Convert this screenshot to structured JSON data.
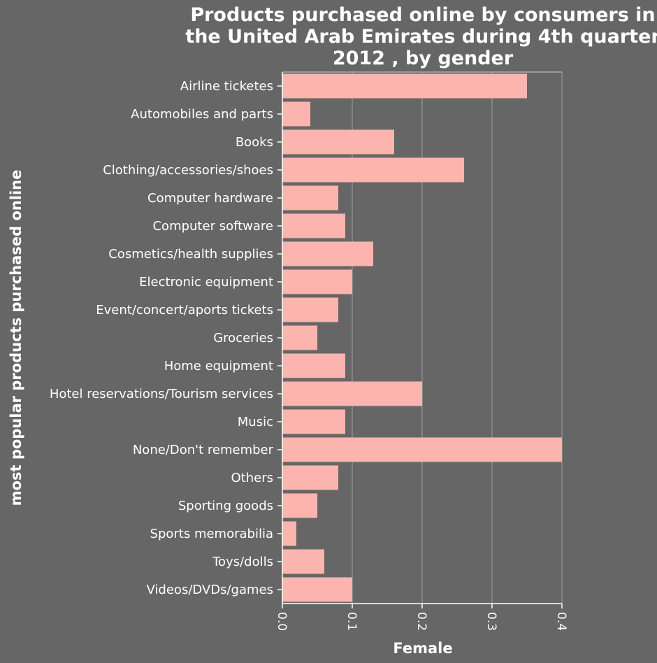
{
  "chart_data": {
    "type": "bar",
    "orientation": "horizontal",
    "title": "Products purchased online by consumers in the United Arab Emirates during 4th quarter 2012 , by gender",
    "title_lines": [
      "Products purchased online by consumers in",
      "the United Arab Emirates during 4th quarter",
      "2012 , by gender"
    ],
    "xlabel": "Female",
    "ylabel": "most popular products purchased online",
    "xlim": [
      0,
      0.4
    ],
    "xticks": [
      "0.0",
      "0.1",
      "0.2",
      "0.3",
      "0.4"
    ],
    "grid": true,
    "categories": [
      "Airline ticketes",
      "Automobiles and parts",
      "Books",
      "Clothing/accessories/shoes",
      "Computer hardware",
      "Computer software",
      "Cosmetics/health supplies",
      "Electronic equipment",
      "Event/concert/aports tickets",
      "Groceries",
      "Home equipment",
      "Hotel reservations/Tourism services",
      "Music",
      "None/Don't remember",
      "Others",
      "Sporting goods",
      "Sports memorabilia",
      "Toys/dolls",
      "Videos/DVDs/games"
    ],
    "values": [
      0.35,
      0.04,
      0.16,
      0.26,
      0.08,
      0.09,
      0.13,
      0.1,
      0.08,
      0.05,
      0.09,
      0.2,
      0.09,
      0.4,
      0.08,
      0.05,
      0.02,
      0.06,
      0.1
    ],
    "colors": {
      "background": "#666666",
      "bar": "#fbb4ae",
      "grid": "#a0a0a0",
      "axis": "#ffffff",
      "text": "#ffffff"
    }
  }
}
